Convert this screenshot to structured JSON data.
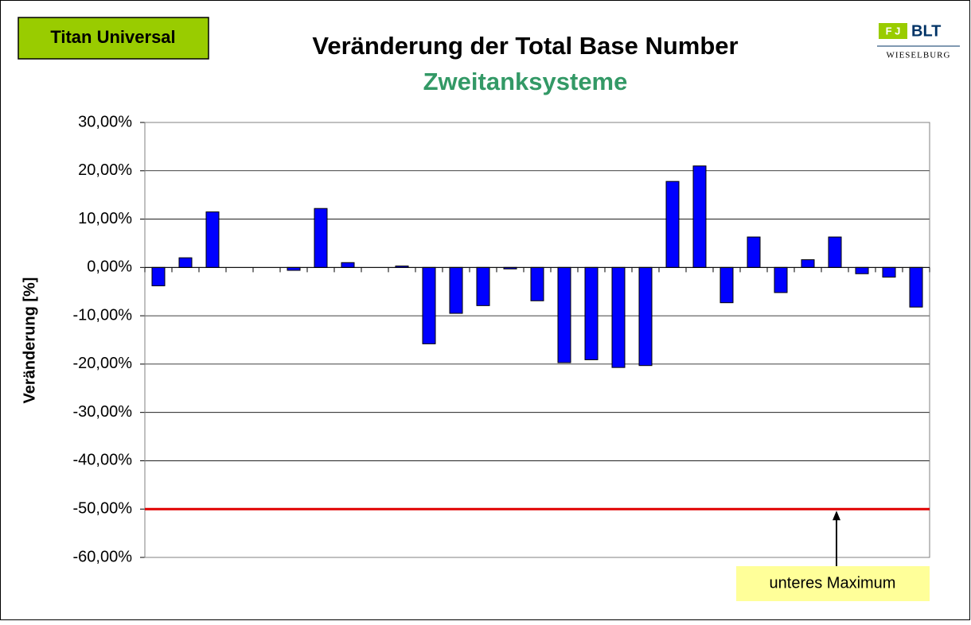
{
  "chart_data": {
    "type": "bar",
    "badge": "Titan Universal",
    "title": "Veränderung der Total Base Number",
    "subtitle": "Zweitanksysteme",
    "logo": {
      "mark": "F J",
      "name": "BLT",
      "place": "WIESELBURG"
    },
    "y_label": "Veränderung [%]",
    "categories": [
      null,
      null,
      null,
      null,
      null,
      null,
      null,
      null,
      null,
      null,
      null,
      null,
      null,
      null,
      null,
      null,
      null,
      null,
      null,
      null,
      null,
      null,
      null,
      null,
      null,
      null,
      null,
      null,
      null
    ],
    "values": [
      -3.8,
      2.0,
      11.5,
      null,
      null,
      -0.6,
      12.2,
      1.0,
      null,
      0.3,
      -15.8,
      -9.5,
      -7.9,
      -0.3,
      -6.9,
      -19.7,
      -19.1,
      -20.7,
      -20.3,
      17.8,
      21.0,
      -7.3,
      6.3,
      -5.2,
      1.6,
      6.3,
      -1.3,
      -2.0,
      -8.2
    ],
    "color": "#0000ff",
    "ylim": [
      -60,
      30
    ],
    "yticks": [
      {
        "value": -60,
        "label": "-60,00%"
      },
      {
        "value": -50,
        "label": "-50,00%"
      },
      {
        "value": -40,
        "label": "-40,00%"
      },
      {
        "value": -30,
        "label": "-30,00%"
      },
      {
        "value": -20,
        "label": "-20,00%"
      },
      {
        "value": -10,
        "label": "-10,00%"
      },
      {
        "value": 0,
        "label": "0,00%"
      },
      {
        "value": 10,
        "label": "10,00%"
      },
      {
        "value": 20,
        "label": "20,00%"
      },
      {
        "value": 30,
        "label": "30,00%"
      }
    ],
    "grid": true,
    "threshold": -50,
    "threshold_color": "#e00000",
    "annotation": "unteres Maximum"
  }
}
